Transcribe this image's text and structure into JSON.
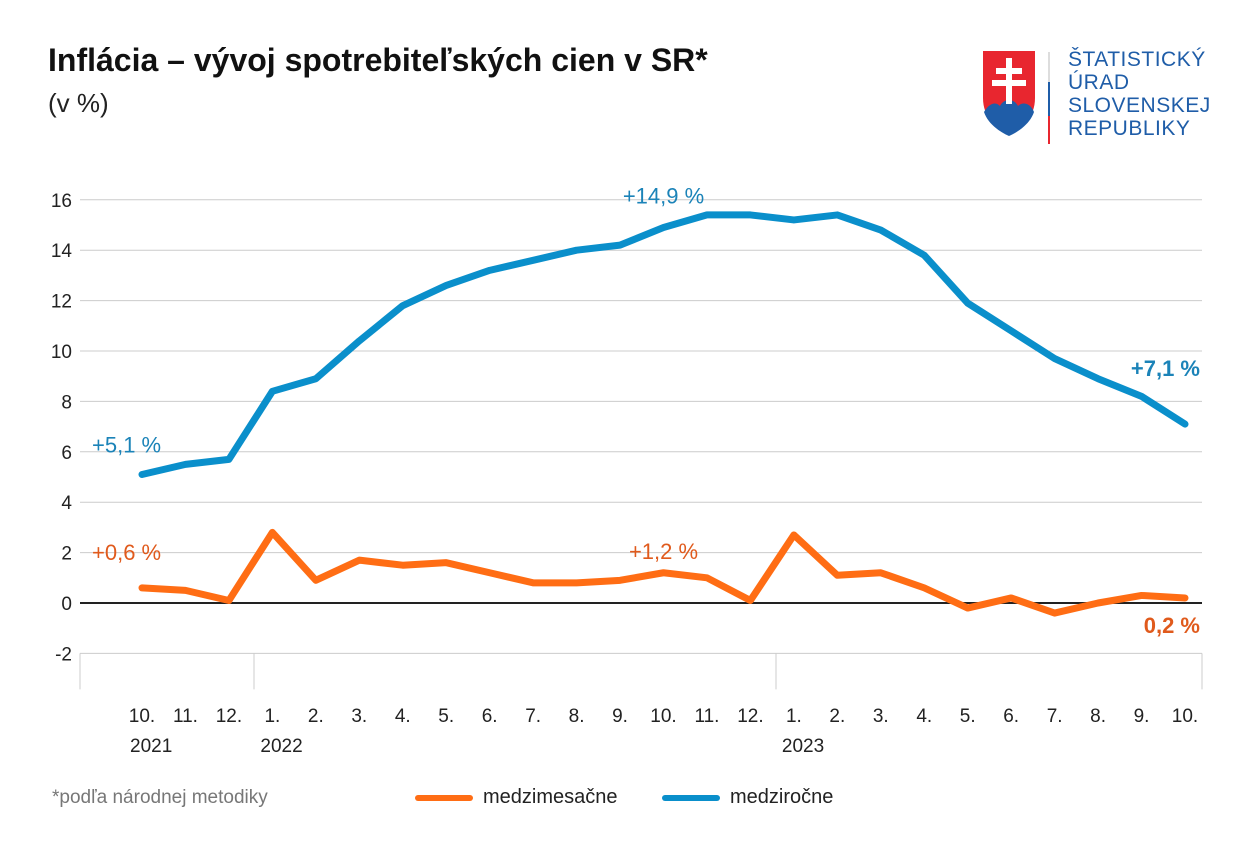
{
  "title": "Inflácia – vývoj spotrebiteľských cien v SR*",
  "subtitle": "(v %)",
  "logo": {
    "lines": [
      "ŠTATISTICKÝ",
      "ÚRAD",
      "SLOVENSKEJ",
      "REPUBLIKY"
    ]
  },
  "footnote": "*podľa národnej metodiky",
  "chart_data": {
    "type": "line",
    "x_months": [
      "10.",
      "11.",
      "12.",
      "1.",
      "2.",
      "3.",
      "4.",
      "5.",
      "6.",
      "7.",
      "8.",
      "9.",
      "10.",
      "11.",
      "12.",
      "1.",
      "2.",
      "3.",
      "4.",
      "5.",
      "6.",
      "7.",
      "8.",
      "9.",
      "10."
    ],
    "x_years": [
      {
        "label": "2021",
        "index": 0
      },
      {
        "label": "2022",
        "index": 3
      },
      {
        "label": "2023",
        "index": 15
      }
    ],
    "ylim": [
      -2,
      16
    ],
    "yticks": [
      -2,
      0,
      2,
      4,
      6,
      8,
      10,
      12,
      14,
      16
    ],
    "grid": true,
    "legend_position": "bottom",
    "series": [
      {
        "name": "medzimesačne",
        "color": "#ff6d14",
        "values": [
          0.6,
          0.5,
          0.1,
          2.8,
          0.9,
          1.7,
          1.5,
          1.6,
          1.2,
          0.8,
          0.8,
          0.9,
          1.2,
          1.0,
          0.1,
          2.7,
          1.1,
          1.2,
          0.6,
          -0.2,
          0.2,
          -0.4,
          0.0,
          0.3,
          0.2
        ]
      },
      {
        "name": "medziročne",
        "color": "#0a8fcb",
        "values": [
          5.1,
          5.5,
          5.7,
          8.4,
          8.9,
          10.4,
          11.8,
          12.6,
          13.2,
          13.6,
          14.0,
          14.2,
          14.9,
          15.4,
          15.4,
          15.2,
          15.4,
          14.8,
          13.8,
          11.9,
          10.8,
          9.7,
          8.9,
          8.2,
          7.1
        ]
      }
    ],
    "annotations": [
      {
        "text": "+5,1 %",
        "series": 1,
        "index": 0,
        "color": "#1b83b8",
        "bold": false
      },
      {
        "text": "+14,9 %",
        "series": 1,
        "index": 12,
        "color": "#1b83b8",
        "bold": false
      },
      {
        "text": "+7,1 %",
        "series": 1,
        "index": 24,
        "color": "#1b83b8",
        "bold": true
      },
      {
        "text": "+0,6 %",
        "series": 0,
        "index": 0,
        "color": "#e05a1c",
        "bold": false
      },
      {
        "text": "+1,2 %",
        "series": 0,
        "index": 12,
        "color": "#e05a1c",
        "bold": false
      },
      {
        "text": "0,2 %",
        "series": 0,
        "index": 24,
        "color": "#e05a1c",
        "bold": true
      }
    ]
  }
}
